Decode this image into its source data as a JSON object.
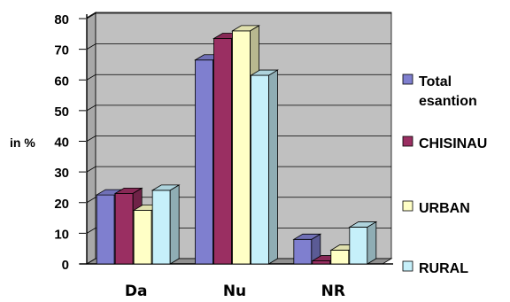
{
  "chart_data": {
    "type": "bar",
    "three_d": true,
    "ylabel": "in %",
    "ylim": [
      0,
      80
    ],
    "ytick_step": 10,
    "grid": true,
    "legend_position": "right",
    "categories": [
      "Da",
      "Nu",
      "NR"
    ],
    "series": [
      {
        "name": "Total\nesantion",
        "color": "#7f7fcf",
        "values": [
          22.5,
          66.5,
          8
        ]
      },
      {
        "name": "CHISINAU",
        "color": "#9a2f62",
        "values": [
          23,
          73.5,
          1
        ]
      },
      {
        "name": "URBAN",
        "color": "#ffffc6",
        "values": [
          17.5,
          76,
          4.5
        ]
      },
      {
        "name": "RURAL",
        "color": "#c6f0fa",
        "values": [
          24,
          61.5,
          12
        ]
      }
    ],
    "plot_background": "#c0c0c0"
  }
}
